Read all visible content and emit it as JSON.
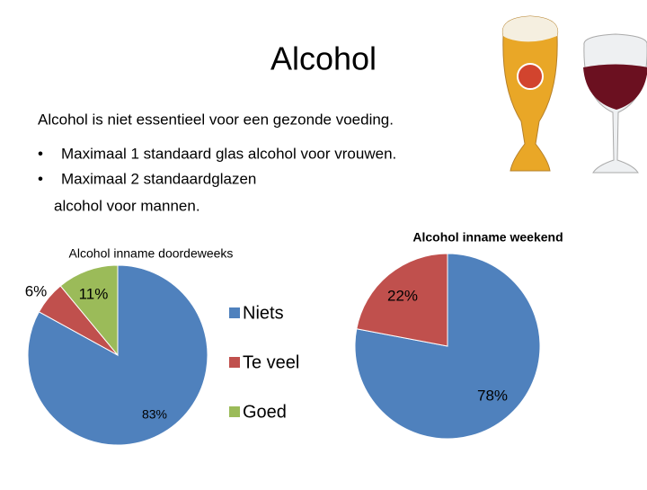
{
  "slide": {
    "title": "Alcohol",
    "lines": [
      "Alcohol is niet essentieel voor een gezonde voeding.",
      "Maximaal 1 standaard glas alcohol voor vrouwen.",
      "Maximaal 2 standaardglazen",
      "alcohol voor mannen."
    ]
  },
  "chart_data": [
    {
      "type": "pie",
      "title": "Alcohol inname doordeweeks",
      "categories": [
        "Niets",
        "Te veel",
        "Goed"
      ],
      "values": [
        83,
        6,
        11
      ],
      "value_labels": [
        "83%",
        "6%",
        "11%"
      ],
      "colors": [
        "#4f81bd",
        "#c0504d",
        "#9bbb59"
      ],
      "legend": "right"
    },
    {
      "type": "pie",
      "title": "Alcohol inname weekend",
      "values": [
        78,
        22
      ],
      "value_labels": [
        "78%",
        "22%"
      ],
      "colors": [
        "#4f81bd",
        "#c0504d"
      ]
    }
  ]
}
